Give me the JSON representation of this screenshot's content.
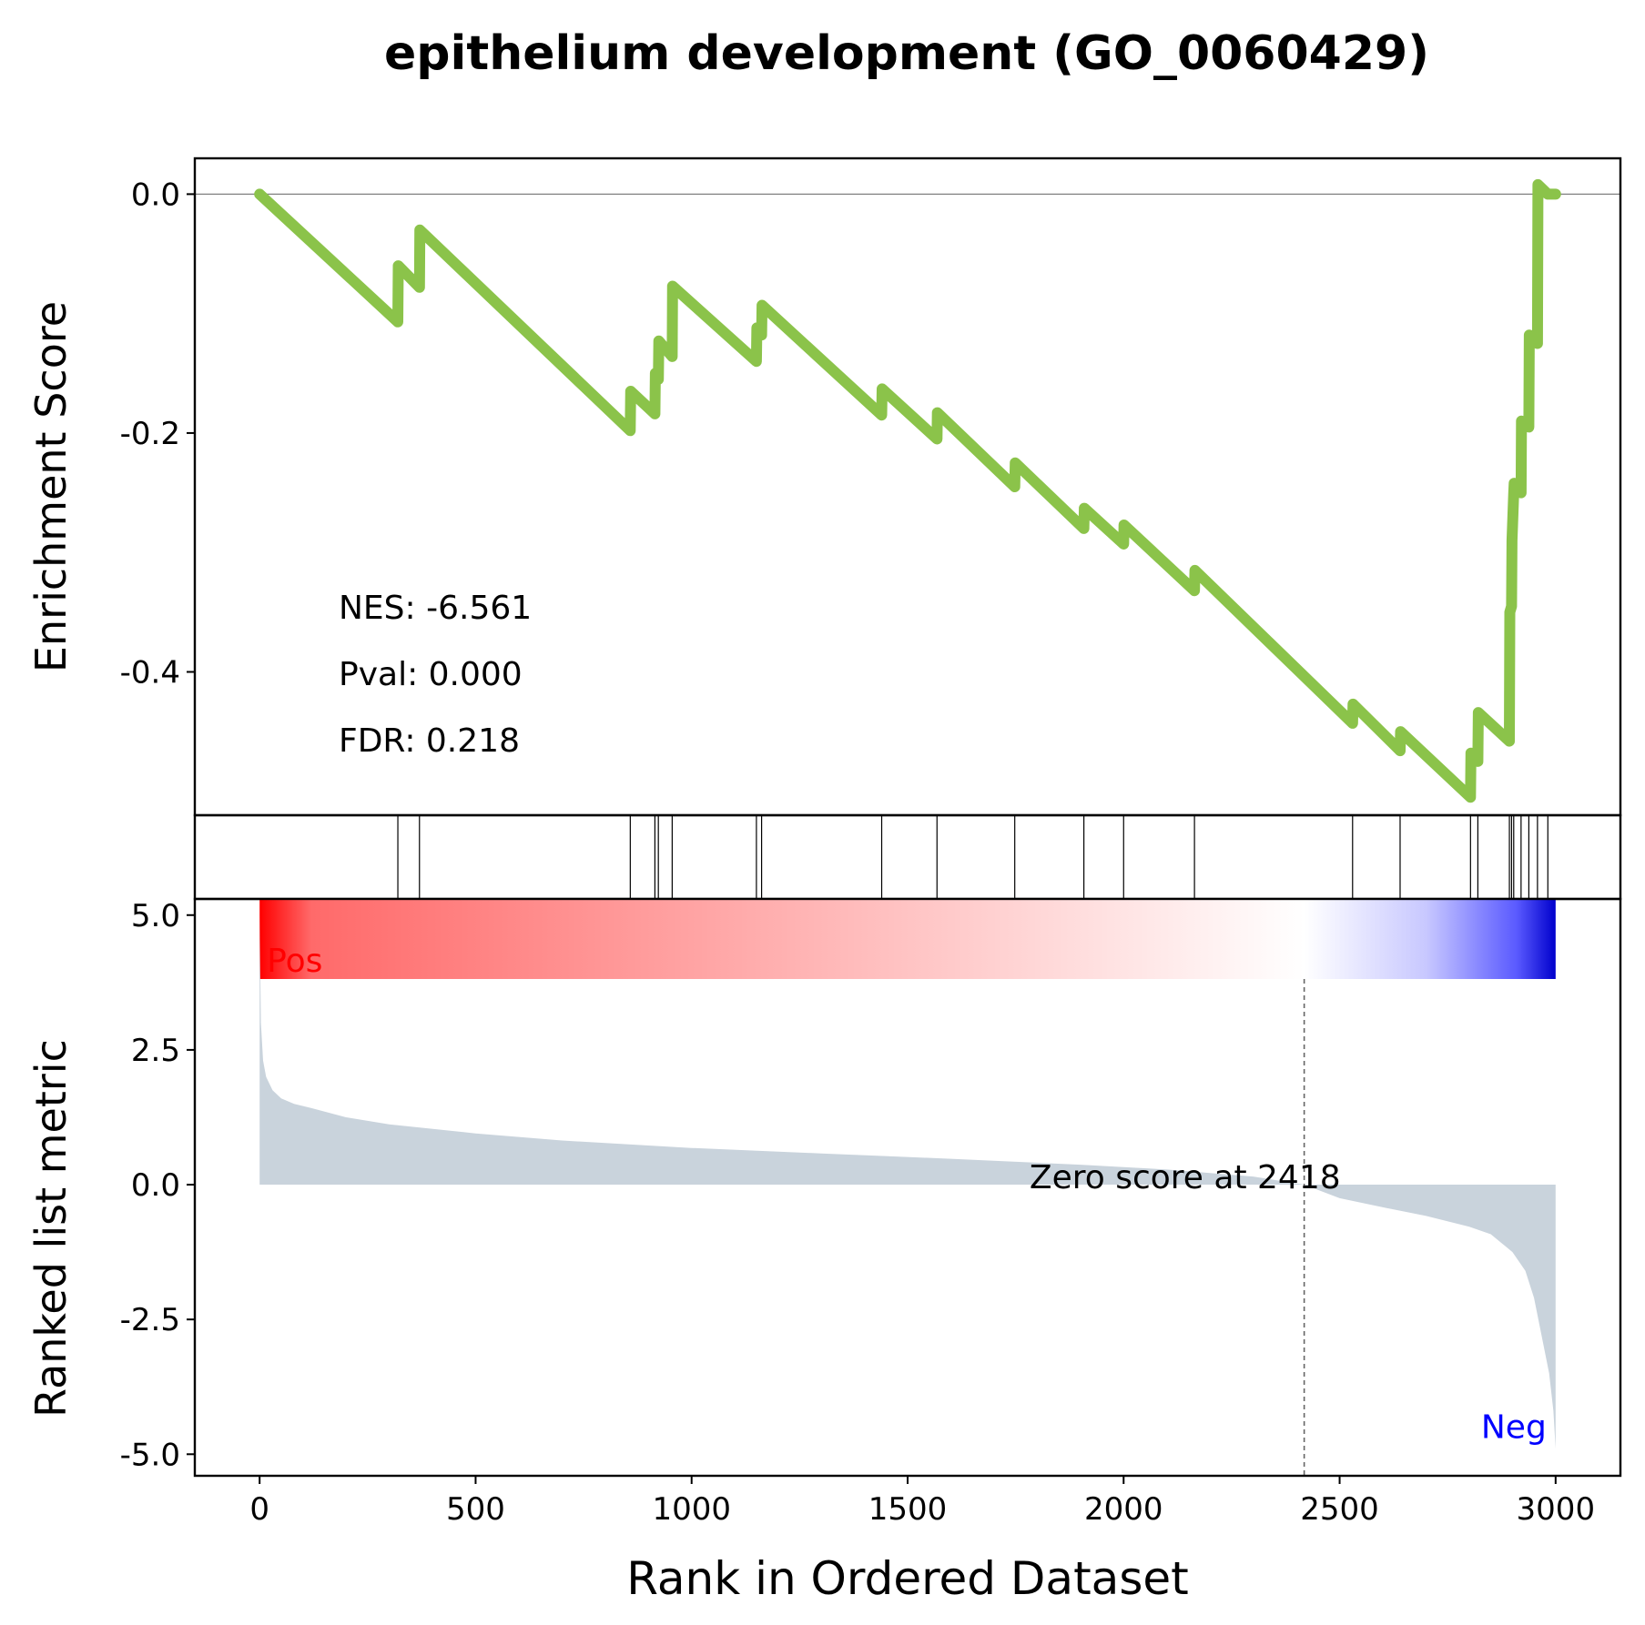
{
  "chart_data": {
    "type": "line",
    "title": "epithelium development (GO_0060429)",
    "xlabel": "Rank in Ordered Dataset",
    "xlim": [
      -150,
      3150
    ],
    "x_ticks": [
      0,
      500,
      1000,
      1500,
      2000,
      2500,
      3000
    ],
    "x_tick_labels": [
      "0",
      "500",
      "1000",
      "1500",
      "2000",
      "2500",
      "3000"
    ],
    "enrichment": {
      "ylabel": "Enrichment Score",
      "ylim": [
        -0.52,
        0.03
      ],
      "y_ticks": [
        0.0,
        -0.2,
        -0.4
      ],
      "y_tick_labels": [
        "0.0",
        "-0.2",
        "-0.4"
      ],
      "zero_line": true,
      "line_color": "#8bc34a",
      "stats": {
        "nes": "NES: -6.561",
        "pval": "Pval: 0.000",
        "fdr": "FDR: 0.218"
      },
      "points": [
        [
          0,
          0.0
        ],
        [
          320,
          -0.107
        ],
        [
          321,
          -0.06
        ],
        [
          370,
          -0.078
        ],
        [
          371,
          -0.03
        ],
        [
          858,
          -0.198
        ],
        [
          859,
          -0.165
        ],
        [
          915,
          -0.184
        ],
        [
          916,
          -0.15
        ],
        [
          923,
          -0.155
        ],
        [
          924,
          -0.123
        ],
        [
          955,
          -0.136
        ],
        [
          956,
          -0.077
        ],
        [
          1150,
          -0.14
        ],
        [
          1151,
          -0.112
        ],
        [
          1162,
          -0.118
        ],
        [
          1163,
          -0.093
        ],
        [
          1440,
          -0.185
        ],
        [
          1441,
          -0.163
        ],
        [
          1568,
          -0.205
        ],
        [
          1569,
          -0.183
        ],
        [
          1748,
          -0.245
        ],
        [
          1749,
          -0.225
        ],
        [
          1908,
          -0.28
        ],
        [
          1909,
          -0.263
        ],
        [
          2000,
          -0.293
        ],
        [
          2001,
          -0.277
        ],
        [
          2164,
          -0.332
        ],
        [
          2165,
          -0.315
        ],
        [
          2530,
          -0.443
        ],
        [
          2531,
          -0.427
        ],
        [
          2640,
          -0.466
        ],
        [
          2641,
          -0.45
        ],
        [
          2803,
          -0.505
        ],
        [
          2804,
          -0.468
        ],
        [
          2820,
          -0.475
        ],
        [
          2821,
          -0.434
        ],
        [
          2893,
          -0.458
        ],
        [
          2894,
          -0.35
        ],
        [
          2898,
          -0.345
        ],
        [
          2899,
          -0.29
        ],
        [
          2903,
          -0.25
        ],
        [
          2904,
          -0.242
        ],
        [
          2920,
          -0.25
        ],
        [
          2921,
          -0.19
        ],
        [
          2938,
          -0.195
        ],
        [
          2939,
          -0.118
        ],
        [
          2958,
          -0.125
        ],
        [
          2959,
          0.008
        ],
        [
          2982,
          0.0
        ],
        [
          3000,
          0.0
        ]
      ]
    },
    "hits": [
      320,
      370,
      858,
      915,
      923,
      955,
      1150,
      1162,
      1440,
      1568,
      1748,
      1908,
      2000,
      2164,
      2530,
      2640,
      2803,
      2820,
      2893,
      2898,
      2903,
      2920,
      2938,
      2958,
      2982
    ],
    "colorbar": {
      "colors": [
        "#ff0000",
        "#ffffff",
        "#0000cc"
      ],
      "zero_rank": 2418
    },
    "ranked": {
      "ylabel": "Ranked list metric",
      "ylim": [
        -5.4,
        5.3
      ],
      "y_ticks": [
        5.0,
        2.5,
        0.0,
        -2.5,
        -5.0
      ],
      "y_tick_labels": [
        "5.0",
        "2.5",
        "0.0",
        "-2.5",
        "-5.0"
      ],
      "fill_color": "#c9d3dc",
      "zero_score_label": "Zero score at 2418",
      "zero_rank": 2418,
      "pos_label": "Pos",
      "neg_label": "Neg",
      "pos_color": "#ff0000",
      "neg_color": "#0000ff",
      "points": [
        [
          0,
          5.0
        ],
        [
          3,
          3.0
        ],
        [
          8,
          2.3
        ],
        [
          15,
          2.0
        ],
        [
          30,
          1.75
        ],
        [
          50,
          1.6
        ],
        [
          80,
          1.5
        ],
        [
          120,
          1.42
        ],
        [
          200,
          1.25
        ],
        [
          300,
          1.12
        ],
        [
          500,
          0.95
        ],
        [
          700,
          0.82
        ],
        [
          1000,
          0.68
        ],
        [
          1300,
          0.58
        ],
        [
          1600,
          0.48
        ],
        [
          1900,
          0.37
        ],
        [
          2100,
          0.28
        ],
        [
          2300,
          0.15
        ],
        [
          2418,
          0.0
        ],
        [
          2500,
          -0.25
        ],
        [
          2600,
          -0.42
        ],
        [
          2700,
          -0.58
        ],
        [
          2800,
          -0.78
        ],
        [
          2850,
          -0.92
        ],
        [
          2900,
          -1.25
        ],
        [
          2930,
          -1.6
        ],
        [
          2950,
          -2.1
        ],
        [
          2970,
          -2.9
        ],
        [
          2985,
          -3.5
        ],
        [
          2995,
          -4.2
        ],
        [
          3000,
          -4.9
        ]
      ]
    }
  }
}
